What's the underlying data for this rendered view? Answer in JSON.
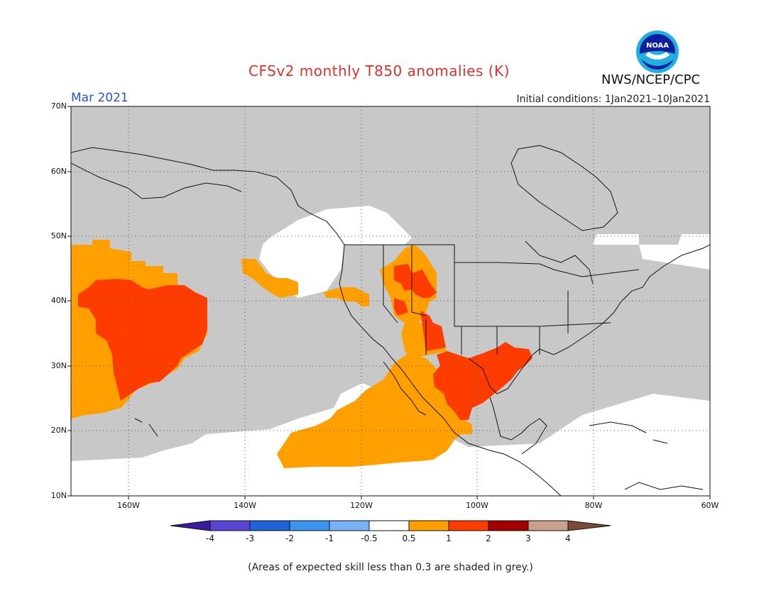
{
  "title": "CFSv2 monthly T850 anomalies (K)",
  "month": "Mar 2021",
  "initial_conditions": "Initial conditions: 1Jan2021–10Jan2021",
  "organization": "NWS/NCEP/CPC",
  "logo_text": "NOAA",
  "lat_labels": [
    "70N",
    "60N",
    "50N",
    "40N",
    "30N",
    "20N",
    "10N"
  ],
  "lon_labels": [
    "160W",
    "140W",
    "120W",
    "100W",
    "80W",
    "60W"
  ],
  "colorbar": {
    "labels": [
      "-4",
      "-3",
      "-2",
      "-1",
      "-0.5",
      "0.5",
      "1",
      "2",
      "3",
      "4"
    ],
    "colors": [
      "#3a1aa0",
      "#5a44d6",
      "#1e64d6",
      "#3c96f0",
      "#78b4f5",
      "#ffffff",
      "#ff9f00",
      "#ff3c00",
      "#a00000",
      "#c8a08c",
      "#7a4a36"
    ]
  },
  "footnote": "(Areas of expected skill less than 0.3 are shaded in grey.)",
  "colors": {
    "grey": "#c8c8c8",
    "white": "#ffffff",
    "orange": "#ff9f00",
    "red": "#ff3c00"
  }
}
